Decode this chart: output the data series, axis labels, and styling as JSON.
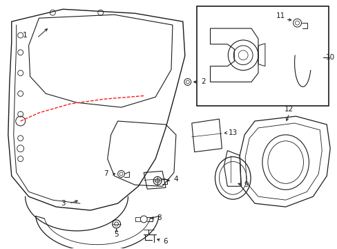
{
  "bg_color": "#ffffff",
  "line_color": "#1a1a1a",
  "dashed_color": "#ff0000",
  "figsize": [
    4.89,
    3.6
  ],
  "dpi": 100
}
